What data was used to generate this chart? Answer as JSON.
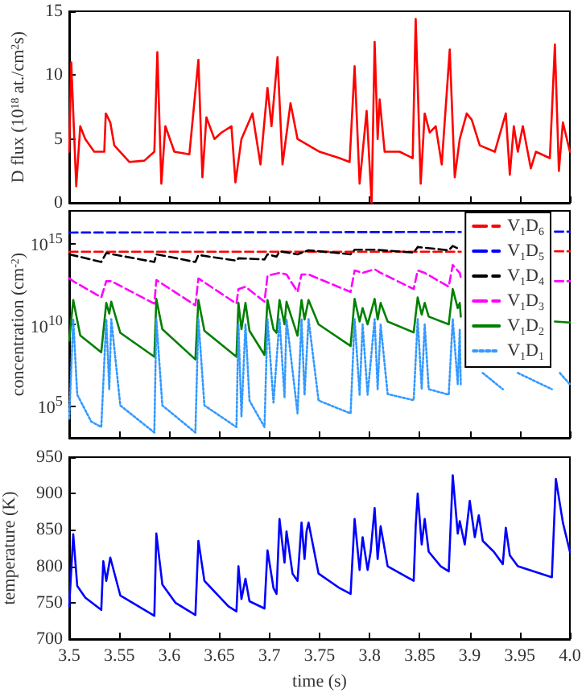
{
  "chart_data": [
    {
      "type": "line",
      "ylabel": "D flux (10$^{18}$ at./cm$^{2}$s)",
      "xlim": [
        3.5,
        4.0
      ],
      "xticks": [
        3.5,
        3.55,
        3.6,
        3.65,
        3.7,
        3.75,
        3.8,
        3.85,
        3.9,
        3.95,
        4.0
      ],
      "ylim": [
        0,
        15
      ],
      "yticks": [
        0,
        5,
        10,
        15
      ],
      "tick_labels": "y",
      "marker": "none",
      "grid": false,
      "legend": false,
      "series": [
        {
          "color": "#ff0000",
          "line_style": "solid",
          "x": [
            3.5,
            3.502,
            3.507,
            3.511,
            3.516,
            3.525,
            3.535,
            3.5365,
            3.541,
            3.545,
            3.56,
            3.575,
            3.585,
            3.588,
            3.592,
            3.596,
            3.605,
            3.62,
            3.629,
            3.633,
            3.637,
            3.645,
            3.652,
            3.662,
            3.666,
            3.672,
            3.683,
            3.691,
            3.698,
            3.702,
            3.708,
            3.713,
            3.721,
            3.728,
            3.75,
            3.77,
            3.78,
            3.785,
            3.79,
            3.797,
            3.802,
            3.805,
            3.808,
            3.81,
            3.815,
            3.83,
            3.843,
            3.846,
            3.851,
            3.855,
            3.86,
            3.866,
            3.872,
            3.88,
            3.885,
            3.89,
            3.897,
            3.902,
            3.91,
            3.925,
            3.936,
            3.94,
            3.944,
            3.948,
            3.953,
            3.961,
            3.966,
            3.98,
            3.985,
            3.989,
            3.993,
            4.0
          ],
          "values": [
            4,
            11,
            1.3,
            6,
            5,
            4,
            4,
            7,
            6.3,
            4.5,
            3.2,
            3.3,
            4,
            11.8,
            1.5,
            6,
            4,
            3.8,
            11.2,
            2,
            6.7,
            5,
            5.5,
            6,
            1.6,
            5,
            7,
            3,
            9,
            6,
            11.4,
            3,
            7.8,
            5,
            4,
            3.5,
            3.2,
            10.7,
            1.5,
            7.2,
            0,
            12.6,
            5,
            8.1,
            4,
            4,
            3.5,
            14.4,
            1.5,
            7,
            5.5,
            6,
            3,
            12,
            2,
            5,
            7,
            6.5,
            4.5,
            4,
            7,
            2.2,
            6,
            4,
            6,
            2.7,
            4,
            3.5,
            12.4,
            2.5,
            6.3,
            4
          ]
        }
      ]
    },
    {
      "type": "line",
      "ylabel": "concentration (cm$^{-2}$)",
      "log": true,
      "xlim": [
        3.5,
        4.0
      ],
      "xticks": [
        3.5,
        3.55,
        3.6,
        3.65,
        3.7,
        3.75,
        3.8,
        3.85,
        3.9,
        3.95,
        4.0
      ],
      "ylim": [
        1000,
        1e+17
      ],
      "yticks": [
        {
          "value": 100000,
          "label": "10$^{5}$"
        },
        {
          "value": 10000000000,
          "label": "10$^{10}$"
        },
        {
          "value": 1000000000000000.0,
          "label": "10$^{15}$"
        }
      ],
      "tick_labels": "y",
      "marker": "none",
      "grid": false,
      "legend": "top right",
      "series": [
        {
          "name": "V$_{1}$D$_{6}$",
          "color": "#ff0000",
          "line_style": "dashed",
          "x": [
            3.5,
            3.891,
            3.9,
            3.985,
            4.0
          ],
          "values": [
            300000000000000.0,
            300000000000000.0,
            null,
            320000000000000.0,
            320000000000000.0
          ]
        },
        {
          "name": "V$_{1}$D$_{5}$",
          "color": "#0000ff",
          "line_style": "dashed",
          "x": [
            3.5,
            3.891,
            3.9,
            3.985,
            4.0
          ],
          "values": [
            4600000000000000.0,
            5000000000000000.0,
            null,
            5200000000000000.0,
            5200000000000000.0
          ]
        },
        {
          "name": "V$_{1}$D$_{4}$",
          "color": "#000000",
          "line_style": "dashed",
          "x": [
            3.5,
            3.532,
            3.537,
            3.585,
            3.587,
            3.626,
            3.629,
            3.667,
            3.669,
            3.695,
            3.698,
            3.707,
            3.71,
            3.728,
            3.739,
            3.781,
            3.785,
            3.805,
            3.844,
            3.848,
            3.879,
            3.883,
            3.891
          ],
          "values": [
            210000000000000.0,
            70000000000000.0,
            250000000000000.0,
            70000000000000.0,
            210000000000000.0,
            70000000000000.0,
            190000000000000.0,
            85000000000000.0,
            120000000000000.0,
            100000000000000.0,
            210000000000000.0,
            150000000000000.0,
            320000000000000.0,
            210000000000000.0,
            370000000000000.0,
            210000000000000.0,
            400000000000000.0,
            400000000000000.0,
            270000000000000.0,
            590000000000000.0,
            370000000000000.0,
            680000000000000.0,
            400000000000000.0
          ]
        },
        {
          "name": "V$_{1}$D$_{3}$",
          "color": "#ff00ff",
          "line_style": "dashed",
          "x": [
            3.5,
            3.504,
            3.532,
            3.537,
            3.542,
            3.585,
            3.587,
            3.626,
            3.629,
            3.667,
            3.669,
            3.676,
            3.695,
            3.698,
            3.71,
            3.717,
            3.728,
            3.732,
            3.739,
            3.781,
            3.785,
            3.793,
            3.805,
            3.811,
            3.844,
            3.848,
            3.855,
            3.879,
            3.883,
            3.89,
            3.891,
            3.9,
            3.985,
            4.0
          ],
          "values": [
            6800000000000.0,
            4600000000000.0,
            460000000000.0,
            4600000000000.0,
            4600000000000.0,
            190000000000.0,
            5400000000000.0,
            150000000000.0,
            6800000000000.0,
            190000000000.0,
            1500000000000.0,
            2100000000000.0,
            250000000000.0,
            10000000000000.0,
            15000000000000.0,
            12000000000000.0,
            1000000000000.0,
            12000000000000.0,
            12000000000000.0,
            1000000000000.0,
            21000000000000.0,
            15000000000000.0,
            25000000000000.0,
            15000000000000.0,
            1500000000000.0,
            21000000000000.0,
            15000000000000.0,
            2100000000000.0,
            46000000000000.0,
            15000000000000.0,
            8000000000000.0,
            null,
            4600000000000.0,
            4600000000000.0
          ]
        },
        {
          "name": "V$_{1}$D$_{2}$",
          "color": "#008000",
          "line_style": "solid",
          "x": [
            3.5,
            3.504,
            3.511,
            3.532,
            3.537,
            3.54,
            3.542,
            3.551,
            3.585,
            3.587,
            3.593,
            3.626,
            3.629,
            3.635,
            3.667,
            3.669,
            3.672,
            3.676,
            3.68,
            3.695,
            3.698,
            3.704,
            3.707,
            3.71,
            3.715,
            3.717,
            3.728,
            3.732,
            3.735,
            3.739,
            3.749,
            3.781,
            3.785,
            3.79,
            3.793,
            3.798,
            3.805,
            3.808,
            3.811,
            3.818,
            3.844,
            3.848,
            3.852,
            3.855,
            3.859,
            3.879,
            3.883,
            3.888,
            3.89,
            3.891,
            3.9,
            3.985,
            4.0
          ],
          "values": [
            1000000000.0,
            320000000000.0,
            2100000000.0,
            190000000.0,
            210000000000.0,
            46000000000.0,
            250000000000.0,
            3000000000.0,
            100000000.0,
            370000000000.0,
            5000000000.0,
            68000000.0,
            320000000000.0,
            4000000000.0,
            100000000.0,
            210000000000.0,
            5000000000.0,
            210000000000.0,
            4000000000.0,
            130000000.0,
            320000000000.0,
            5000000000.0,
            3000000000.0,
            320000000000.0,
            10000000000.0,
            250000000000.0,
            2000000000.0,
            320000000000.0,
            20000000000.0,
            320000000000.0,
            10000000000.0,
            460000000.0,
            370000000000.0,
            15000000000.0,
            100000000000.0,
            10000000000.0,
            370000000000.0,
            20000000000.0,
            210000000000.0,
            15000000000.0,
            3200000000.0,
            460000000000.0,
            40000000000.0,
            210000000000.0,
            30000000000.0,
            10000000000.0,
            1500000000000.0,
            100000000000.0,
            210000000000.0,
            30000000000.0,
            null,
            15000000000.0,
            13000000000.0
          ]
        },
        {
          "name": "V$_{1}$D$_{1}$",
          "color": "#3399ff",
          "line_style": "dotted",
          "x": [
            3.5,
            3.504,
            3.508,
            3.522,
            3.532,
            3.537,
            3.54,
            3.542,
            3.551,
            3.585,
            3.587,
            3.593,
            3.626,
            3.629,
            3.635,
            3.667,
            3.669,
            3.672,
            3.676,
            3.68,
            3.695,
            3.698,
            3.704,
            3.71,
            3.715,
            3.717,
            3.728,
            3.732,
            3.735,
            3.739,
            3.749,
            3.781,
            3.785,
            3.79,
            3.793,
            3.798,
            3.805,
            3.808,
            3.811,
            3.818,
            3.844,
            3.848,
            3.852,
            3.855,
            3.859,
            3.879,
            3.883,
            3.888,
            3.89,
            3.891,
            3.897,
            3.913,
            3.933,
            3.936,
            3.948,
            3.982,
            3.986,
            3.99,
            4.0
          ],
          "values": [
            15000,
            21000000000.0,
            460000,
            10000,
            4600,
            21000000000.0,
            1000000,
            21000000000.0,
            100000,
            2100,
            21000000000.0,
            100000,
            2100,
            21000000000.0,
            100000,
            4600,
            10000000000.0,
            21000,
            10000000000.0,
            200000,
            4600,
            21000000000.0,
            150000,
            21000000000.0,
            320000,
            21000000000.0,
            32000,
            21000000000.0,
            460000,
            21000000000.0,
            200000,
            32000,
            21000000000.0,
            460000,
            10000000000.0,
            460000,
            21000000000.0,
            1000000,
            10000000000.0,
            500000,
            210000,
            21000000000.0,
            1000000,
            10000000000.0,
            1000000,
            460000,
            21000000000.0,
            2100000,
            4600000000.0,
            2000000,
            null,
            10000000,
            1000000,
            null,
            10000000,
            1000000,
            null,
            10000000,
            2000000
          ]
        }
      ]
    },
    {
      "type": "line",
      "ylabel": "temperature (K)",
      "xlabel": "time (s)",
      "xlim": [
        3.5,
        4.0
      ],
      "xticks": [
        3.5,
        3.55,
        3.6,
        3.65,
        3.7,
        3.75,
        3.8,
        3.85,
        3.9,
        3.95,
        {
          "value": 4.0,
          "label": "4.0"
        }
      ],
      "ylim": [
        700,
        950
      ],
      "yticks": [
        700,
        750,
        800,
        850,
        900,
        950
      ],
      "marker": "none",
      "grid": false,
      "legend": false,
      "series": [
        {
          "color": "#0000ff",
          "line_style": "solid",
          "x": [
            3.5,
            3.504,
            3.508,
            3.516,
            3.532,
            3.534,
            3.537,
            3.541,
            3.551,
            3.585,
            3.587,
            3.593,
            3.606,
            3.626,
            3.629,
            3.635,
            3.659,
            3.667,
            3.669,
            3.672,
            3.676,
            3.68,
            3.695,
            3.698,
            3.704,
            3.707,
            3.71,
            3.715,
            3.717,
            3.723,
            3.728,
            3.732,
            3.735,
            3.737,
            3.739,
            3.749,
            3.77,
            3.781,
            3.785,
            3.79,
            3.793,
            3.798,
            3.801,
            3.805,
            3.808,
            3.811,
            3.818,
            3.844,
            3.846,
            3.848,
            3.852,
            3.855,
            3.859,
            3.871,
            3.879,
            3.883,
            3.888,
            3.89,
            3.895,
            3.9,
            3.905,
            3.909,
            3.913,
            3.924,
            3.933,
            3.936,
            3.94,
            3.948,
            3.982,
            3.986,
            3.993,
            4.0
          ],
          "values": [
            745,
            844,
            773,
            757,
            740,
            807,
            780,
            812,
            760,
            732,
            845,
            775,
            750,
            733,
            835,
            780,
            745,
            738,
            800,
            755,
            783,
            752,
            742,
            822,
            770,
            762,
            865,
            805,
            848,
            790,
            780,
            860,
            810,
            848,
            860,
            790,
            770,
            762,
            865,
            795,
            840,
            795,
            820,
            880,
            810,
            855,
            800,
            780,
            855,
            900,
            830,
            865,
            820,
            800,
            793,
            925,
            845,
            862,
            830,
            890,
            840,
            870,
            835,
            820,
            803,
            853,
            815,
            800,
            785,
            920,
            860,
            820
          ]
        }
      ]
    }
  ]
}
